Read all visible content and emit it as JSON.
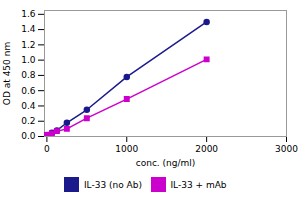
{
  "chart_data": {
    "type": "line",
    "x": [
      0,
      62.5,
      125,
      250,
      500,
      1000,
      2000
    ],
    "series": [
      {
        "name": "IL-33 (no Ab)",
        "color": "#1a1a8c",
        "marker": "circle",
        "values": [
          0.02,
          0.05,
          0.08,
          0.18,
          0.35,
          0.78,
          1.5
        ]
      },
      {
        "name": "IL-33 + mAb",
        "color": "#cc00cc",
        "marker": "square",
        "values": [
          0.02,
          0.04,
          0.07,
          0.1,
          0.24,
          0.49,
          1.01
        ]
      }
    ],
    "xlabel": "conc. (ng/ml)",
    "ylabel": "OD at 450 nm",
    "xlim": [
      -30,
      3000
    ],
    "ylim": [
      0,
      1.65
    ],
    "xticks": [
      0,
      1000,
      2000,
      3000
    ],
    "yticks": [
      {
        "value": 0,
        "label": "0.0"
      },
      0.2,
      0.4,
      0.6,
      0.8,
      {
        "value": 1.0,
        "label": "1.0"
      },
      1.2,
      1.4,
      1.6
    ],
    "legend": "bottom"
  }
}
